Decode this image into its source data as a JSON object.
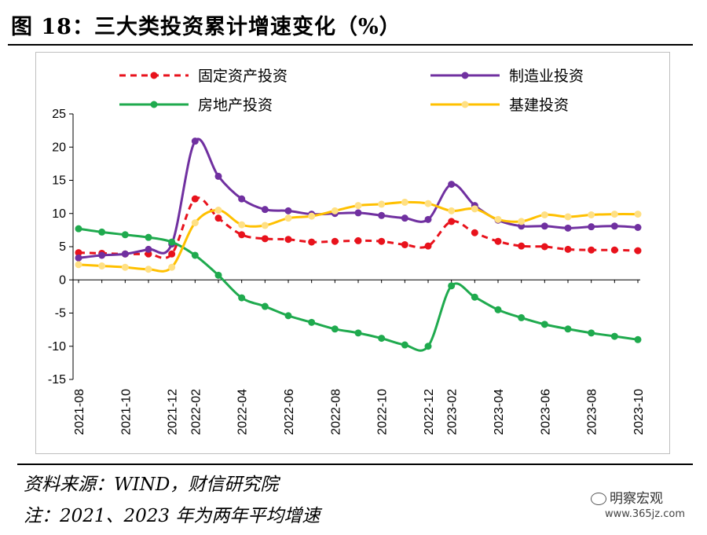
{
  "figure": {
    "title": "图 18：三大类投资累计增速变化（%）",
    "source_note": "资料来源：WIND，财信研究院",
    "footnote": "注：2021、2023 年为两年平均增速",
    "watermark_name": "明察宏观",
    "watermark_url": "www.365jz.com"
  },
  "chart_data": {
    "type": "line",
    "title": "",
    "xlabel": "",
    "ylabel": "",
    "ylim": [
      -15,
      25
    ],
    "yticks": [
      25,
      20,
      15,
      10,
      5,
      0,
      -5,
      -10,
      -15
    ],
    "x": [
      "2021-08",
      "2021-09",
      "2021-10",
      "2021-11",
      "2021-12",
      "2022-02",
      "2022-03",
      "2022-04",
      "2022-05",
      "2022-06",
      "2022-07",
      "2022-08",
      "2022-09",
      "2022-10",
      "2022-11",
      "2022-12",
      "2023-02",
      "2023-03",
      "2023-04",
      "2023-05",
      "2023-06",
      "2023-07",
      "2023-08",
      "2023-09",
      "2023-10"
    ],
    "xtick_labels": [
      "2021-08",
      "2021-10",
      "2021-12",
      "2022-02",
      "2022-04",
      "2022-06",
      "2022-08",
      "2022-10",
      "2022-12",
      "2023-02",
      "2023-04",
      "2023-06",
      "2023-08",
      "2023-10"
    ],
    "xtick_indices": [
      0,
      2,
      4,
      5,
      7,
      9,
      11,
      13,
      15,
      16,
      18,
      20,
      22,
      24
    ],
    "legend_position": "top",
    "grid": false,
    "series": [
      {
        "name": "固定资产投资",
        "color": "#e8121c",
        "style": "dashed",
        "values": [
          4.1,
          4.0,
          3.9,
          3.9,
          3.9,
          12.2,
          9.3,
          6.8,
          6.2,
          6.1,
          5.7,
          5.8,
          5.9,
          5.8,
          5.3,
          5.1,
          8.8,
          7.1,
          5.8,
          5.1,
          5.0,
          4.6,
          4.5,
          4.5,
          4.4
        ]
      },
      {
        "name": "制造业投资",
        "color": "#7030a0",
        "style": "solid",
        "values": [
          3.3,
          3.7,
          3.9,
          4.6,
          5.4,
          20.9,
          15.6,
          12.2,
          10.6,
          10.4,
          9.9,
          10.0,
          10.1,
          9.7,
          9.3,
          9.1,
          14.4,
          11.2,
          9.0,
          8.1,
          8.1,
          7.8,
          8.0,
          8.1,
          7.9
        ]
      },
      {
        "name": "房地产投资",
        "color": "#1faa4e",
        "style": "solid",
        "values": [
          7.7,
          7.2,
          6.8,
          6.4,
          5.7,
          3.7,
          0.7,
          -2.7,
          -4.0,
          -5.4,
          -6.4,
          -7.4,
          -8.0,
          -8.8,
          -9.8,
          -10.0,
          -0.9,
          -2.6,
          -4.5,
          -5.7,
          -6.7,
          -7.4,
          -8.0,
          -8.5,
          -9.0
        ]
      },
      {
        "name": "基建投资",
        "color": "#ffc000",
        "style": "solid",
        "values": [
          2.3,
          2.1,
          1.9,
          1.6,
          1.9,
          8.6,
          10.5,
          8.3,
          8.2,
          9.3,
          9.6,
          10.4,
          11.2,
          11.4,
          11.7,
          11.5,
          10.4,
          10.7,
          9.1,
          8.8,
          9.8,
          9.5,
          9.8,
          9.9,
          9.9
        ]
      }
    ]
  }
}
